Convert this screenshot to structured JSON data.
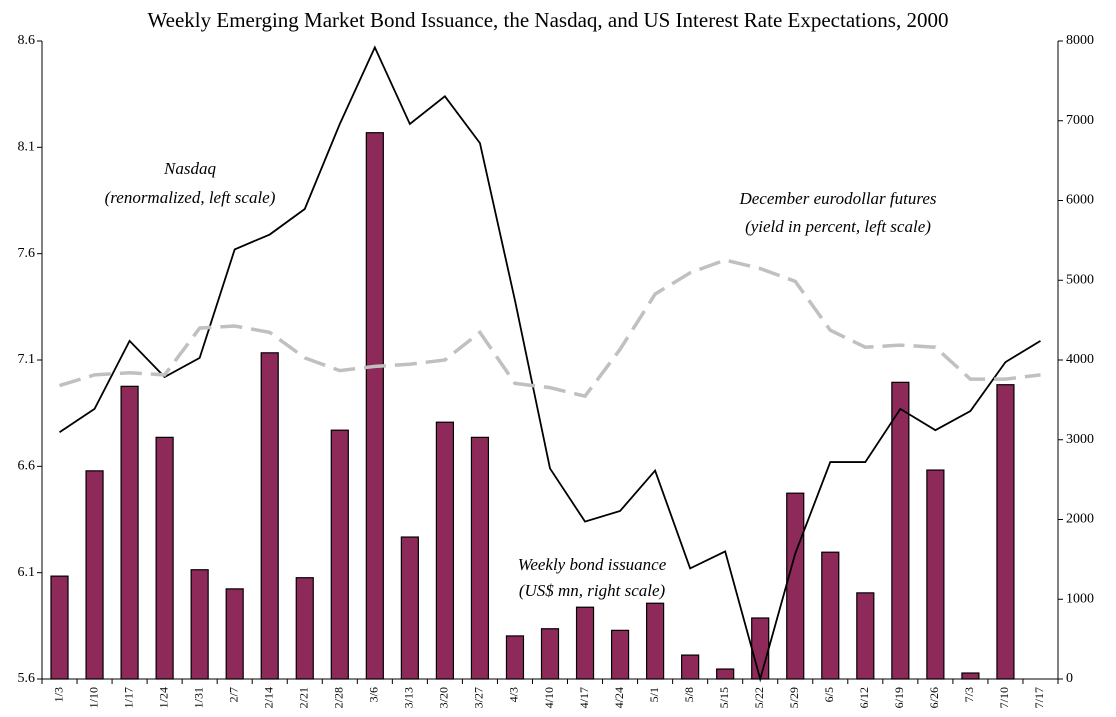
{
  "chart_data": {
    "type": "bar-line",
    "title": "Weekly Emerging Market Bond Issuance, the Nasdaq, and US Interest Rate Expectations, 2000",
    "categories": [
      "1/3",
      "1/10",
      "1/17",
      "1/24",
      "1/31",
      "2/7",
      "2/14",
      "2/21",
      "2/28",
      "3/6",
      "3/13",
      "3/20",
      "3/27",
      "4/3",
      "4/10",
      "4/17",
      "4/24",
      "5/1",
      "5/8",
      "5/15",
      "5/22",
      "5/29",
      "6/5",
      "6/12",
      "6/19",
      "6/26",
      "7/3",
      "7/10",
      "7/17"
    ],
    "series": [
      {
        "name": "Weekly bond issuance",
        "type": "bar",
        "axis": "y2",
        "color": "#8e2a5a",
        "values": [
          1290,
          2610,
          3670,
          3030,
          1370,
          1130,
          4090,
          1270,
          3120,
          6850,
          1780,
          3220,
          3030,
          540,
          630,
          900,
          610,
          950,
          300,
          125,
          765,
          2330,
          1590,
          1080,
          3720,
          2620,
          75,
          3690,
          null
        ]
      },
      {
        "name": "Nasdaq",
        "type": "line",
        "axis": "y",
        "color": "#000000",
        "dash": false,
        "values": [
          6.76,
          6.87,
          7.19,
          7.02,
          7.11,
          7.62,
          7.69,
          7.81,
          8.21,
          8.57,
          8.21,
          8.34,
          8.12,
          7.38,
          6.59,
          6.34,
          6.39,
          6.58,
          6.12,
          6.2,
          5.6,
          6.19,
          6.62,
          6.62,
          6.87,
          6.77,
          6.86,
          7.09,
          7.19
        ]
      },
      {
        "name": "December eurodollar futures",
        "type": "line",
        "axis": "y",
        "color": "#c0c0c0",
        "dash": true,
        "values": [
          6.98,
          7.03,
          7.04,
          7.03,
          7.25,
          7.26,
          7.23,
          7.11,
          7.05,
          7.07,
          7.08,
          7.1,
          7.23,
          6.99,
          6.97,
          6.93,
          7.15,
          7.41,
          7.51,
          7.57,
          7.53,
          7.47,
          7.24,
          7.16,
          7.17,
          7.16,
          7.01,
          7.01,
          7.03
        ]
      }
    ],
    "annotations": [
      [
        "Nasdaq",
        "(renormalized, left scale)"
      ],
      [
        "December eurodollar futures",
        "(yield in percent, left scale)"
      ],
      [
        "Weekly bond issuance",
        "(US$ mn, right scale)"
      ]
    ],
    "ylim": [
      5.6,
      8.6
    ],
    "yticks": [
      5.6,
      6.1,
      6.6,
      7.1,
      7.6,
      8.1,
      8.6
    ],
    "y2lim": [
      0,
      8000
    ],
    "y2ticks": [
      0,
      1000,
      2000,
      3000,
      4000,
      5000,
      6000,
      7000,
      8000
    ],
    "grid": false
  }
}
